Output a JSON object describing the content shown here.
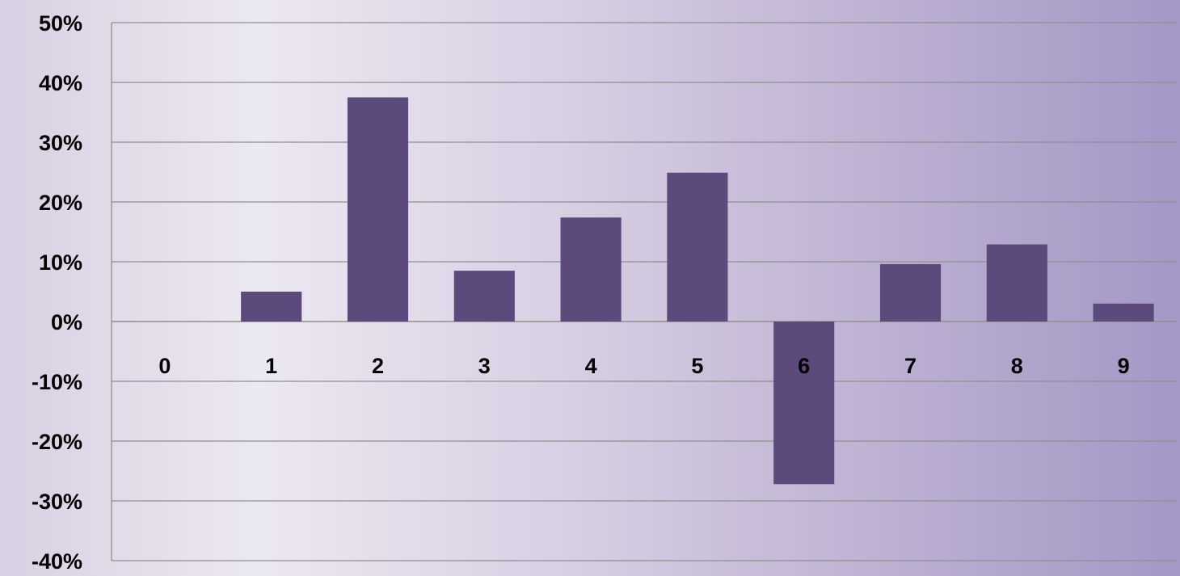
{
  "chart_data": {
    "type": "bar",
    "title": "",
    "xlabel": "",
    "ylabel": "",
    "categories": [
      "0",
      "1",
      "2",
      "3",
      "4",
      "5",
      "6",
      "7",
      "8",
      "9"
    ],
    "series": [
      {
        "values": [
          0,
          5,
          37.5,
          8.5,
          17.4,
          24.9,
          -27.2,
          9.6,
          12.9,
          3.0
        ]
      }
    ],
    "ylim": [
      -40,
      50
    ],
    "y_ticks": [
      50,
      40,
      30,
      20,
      10,
      0,
      -10,
      -20,
      -30,
      -40
    ],
    "y_tick_labels": [
      "50%",
      "40%",
      "30%",
      "20%",
      "10%",
      "0%",
      "-10%",
      "-20%",
      "-30%",
      "-40%"
    ],
    "grid": true,
    "legend": "none",
    "bar_color": "#5c4a7d",
    "grid_color": "#8f8f8f",
    "label_color": "#000000"
  }
}
